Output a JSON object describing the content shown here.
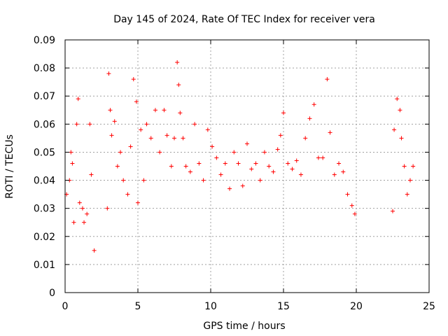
{
  "chart_data": {
    "type": "scatter",
    "title": "Day 145 of 2024, Rate Of TEC Index for receiver vera",
    "xlabel": "GPS time / hours",
    "ylabel": "ROTI / TECUs",
    "xlim": [
      0,
      25
    ],
    "ylim": [
      0,
      0.09
    ],
    "x_ticks": [
      "0",
      "5",
      "10",
      "15",
      "20",
      "25"
    ],
    "y_ticks": [
      "0",
      "0.01",
      "0.02",
      "0.03",
      "0.04",
      "0.05",
      "0.06",
      "0.07",
      "0.08",
      "0.09"
    ],
    "grid": true,
    "marker": "+",
    "color": "#ff0000",
    "series": [
      {
        "x": [
          0.1,
          0.3,
          0.4,
          0.5,
          0.6,
          0.8,
          0.9,
          1.0,
          1.2,
          1.3,
          1.5,
          1.7,
          1.8,
          2.0,
          2.9,
          3.0,
          3.1,
          3.2,
          3.4,
          3.6,
          3.8,
          4.0,
          4.3,
          4.5,
          4.7,
          4.9,
          5.0,
          5.2,
          5.4,
          5.6,
          5.9,
          6.2,
          6.5,
          6.8,
          7.0,
          7.3,
          7.5,
          7.7,
          7.8,
          7.9,
          8.1,
          8.3,
          8.6,
          8.9,
          9.2,
          9.5,
          9.8,
          10.1,
          10.4,
          10.7,
          11.0,
          11.3,
          11.6,
          11.9,
          12.2,
          12.5,
          12.8,
          13.1,
          13.4,
          13.7,
          14.0,
          14.3,
          14.6,
          14.8,
          15.0,
          15.3,
          15.6,
          15.9,
          16.2,
          16.5,
          16.8,
          17.1,
          17.4,
          17.7,
          18.0,
          18.2,
          18.5,
          18.8,
          19.1,
          19.4,
          19.7,
          19.9,
          22.5,
          22.6,
          22.8,
          23.0,
          23.1,
          23.3,
          23.5,
          23.7,
          23.9
        ],
        "y": [
          0.035,
          0.04,
          0.05,
          0.046,
          0.025,
          0.06,
          0.069,
          0.032,
          0.03,
          0.025,
          0.028,
          0.06,
          0.042,
          0.015,
          0.03,
          0.078,
          0.065,
          0.056,
          0.061,
          0.045,
          0.05,
          0.04,
          0.035,
          0.052,
          0.076,
          0.068,
          0.032,
          0.058,
          0.04,
          0.06,
          0.055,
          0.065,
          0.05,
          0.065,
          0.056,
          0.045,
          0.055,
          0.082,
          0.074,
          0.064,
          0.055,
          0.045,
          0.043,
          0.06,
          0.046,
          0.04,
          0.058,
          0.052,
          0.048,
          0.042,
          0.046,
          0.037,
          0.05,
          0.046,
          0.038,
          0.053,
          0.044,
          0.046,
          0.04,
          0.05,
          0.045,
          0.043,
          0.051,
          0.056,
          0.064,
          0.046,
          0.044,
          0.047,
          0.042,
          0.055,
          0.062,
          0.067,
          0.048,
          0.048,
          0.076,
          0.057,
          0.042,
          0.046,
          0.043,
          0.035,
          0.031,
          0.028,
          0.029,
          0.058,
          0.069,
          0.065,
          0.055,
          0.045,
          0.035,
          0.04,
          0.045
        ]
      }
    ]
  }
}
